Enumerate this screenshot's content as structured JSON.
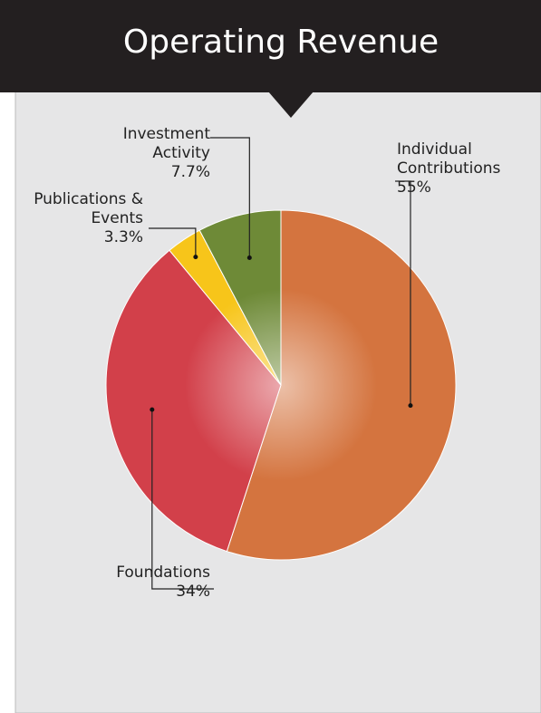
{
  "chart_data": {
    "type": "pie",
    "title": "Operating Revenue",
    "categories": [
      "Individual Contributions",
      "Foundations",
      "Publications & Events",
      "Investment Activity"
    ],
    "values": [
      55,
      34,
      3.3,
      7.7
    ],
    "value_labels": [
      "55%",
      "34%",
      "3.3%",
      "7.7%"
    ],
    "colors": [
      "#d4743f",
      "#d2404a",
      "#f7c51a",
      "#6e8a37"
    ]
  }
}
